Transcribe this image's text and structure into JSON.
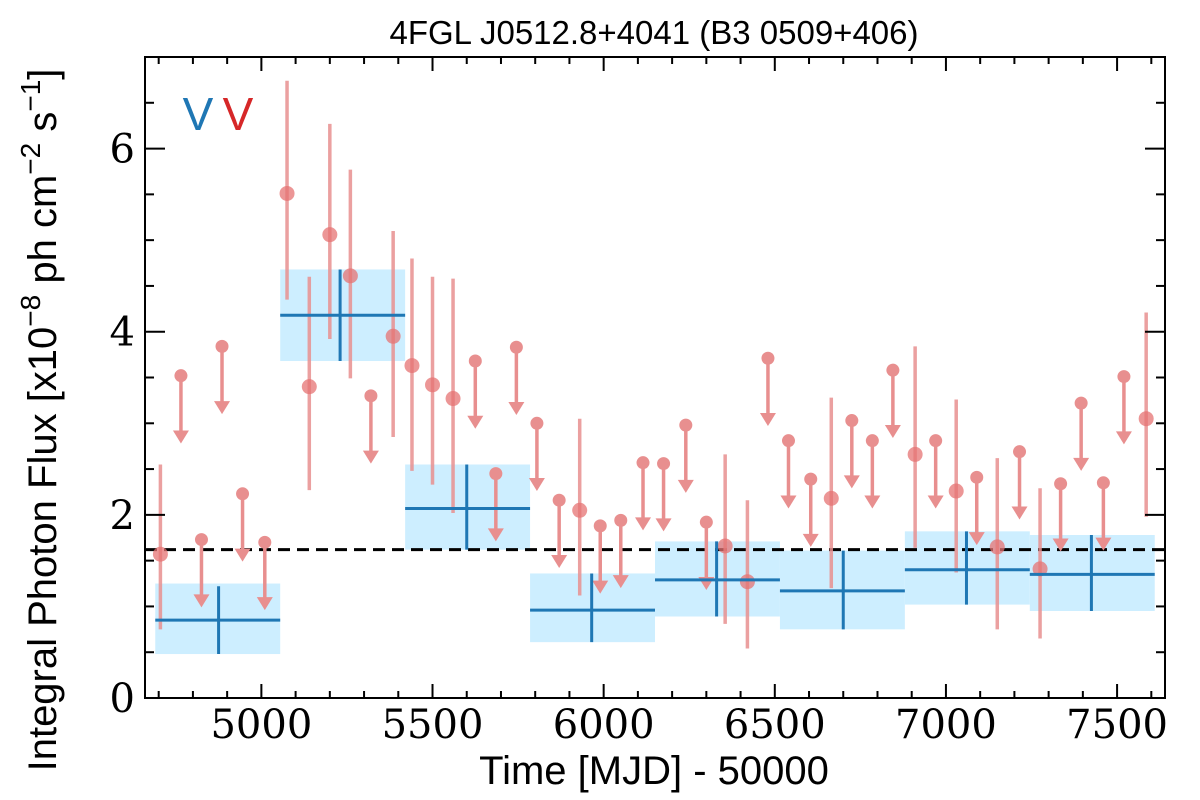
{
  "chart_data": {
    "type": "scatter",
    "title": "4FGL J0512.8+4041 (B3 0509+406)",
    "xlabel": "Time [MJD] - 50000",
    "ylabel": "Integral Photon Flux [x10",
    "ylabel_exp1": "−8",
    "ylabel_mid": " ph cm",
    "ylabel_exp2": "−2",
    "ylabel_end": " s",
    "ylabel_exp3": "−1",
    "ylabel_close": "]",
    "xlim": [
      4660,
      7640
    ],
    "ylim": [
      0,
      7
    ],
    "x_ticks": [
      5000,
      5500,
      6000,
      6500,
      7000,
      7500
    ],
    "y_ticks": [
      0,
      2,
      4,
      6
    ],
    "mean_flux": 1.62,
    "markers": [
      {
        "text": "V",
        "color": "#1f77b4"
      },
      {
        "text": "V",
        "color": "#d62728"
      }
    ],
    "colors": {
      "bin_line": "#1f77b4",
      "bin_fill": "#cdeeff",
      "point": "#e57373",
      "upper_limit": "#e88f8f",
      "mean_line": "#000000"
    },
    "series": [
      {
        "label_role": "long-bins",
        "bins": [
          {
            "x0": 4690,
            "x1": 5055,
            "center": 4875,
            "y": 0.85,
            "ylo": 0.48,
            "yhi": 1.25,
            "err_lo": 0.48,
            "err_hi": 1.22
          },
          {
            "x0": 5055,
            "x1": 5420,
            "center": 5230,
            "y": 4.18,
            "ylo": 3.68,
            "yhi": 4.68,
            "err_lo": 3.68,
            "err_hi": 4.68
          },
          {
            "x0": 5420,
            "x1": 5785,
            "center": 5600,
            "y": 2.07,
            "ylo": 1.62,
            "yhi": 2.55,
            "err_lo": 1.62,
            "err_hi": 2.55
          },
          {
            "x0": 5785,
            "x1": 6150,
            "center": 5965,
            "y": 0.96,
            "ylo": 0.61,
            "yhi": 1.36,
            "err_lo": 0.61,
            "err_hi": 1.36
          },
          {
            "x0": 6150,
            "x1": 6515,
            "center": 6330,
            "y": 1.29,
            "ylo": 0.89,
            "yhi": 1.71,
            "err_lo": 0.89,
            "err_hi": 1.71
          },
          {
            "x0": 6515,
            "x1": 6880,
            "center": 6700,
            "y": 1.17,
            "ylo": 0.75,
            "yhi": 1.61,
            "err_lo": 0.75,
            "err_hi": 1.61
          },
          {
            "x0": 6880,
            "x1": 7245,
            "center": 7060,
            "y": 1.4,
            "ylo": 1.02,
            "yhi": 1.82,
            "err_lo": 1.02,
            "err_hi": 1.82
          },
          {
            "x0": 7245,
            "x1": 7610,
            "center": 7425,
            "y": 1.35,
            "ylo": 0.95,
            "yhi": 1.78,
            "err_lo": 0.95,
            "err_hi": 1.78
          }
        ]
      },
      {
        "label_role": "short-bins",
        "points": [
          {
            "x": 4705,
            "y": 1.57,
            "ylo": 0.75,
            "yhi": 2.55
          },
          {
            "x": 4765,
            "ul": 3.52
          },
          {
            "x": 4825,
            "ul": 1.73
          },
          {
            "x": 4885,
            "ul": 3.84
          },
          {
            "x": 4945,
            "ul": 2.23
          },
          {
            "x": 5010,
            "ul": 1.7
          },
          {
            "x": 5075,
            "y": 5.51,
            "ylo": 4.35,
            "yhi": 6.74
          },
          {
            "x": 5140,
            "y": 3.4,
            "ylo": 2.27,
            "yhi": 4.6
          },
          {
            "x": 5200,
            "y": 5.06,
            "ylo": 3.92,
            "yhi": 6.27
          },
          {
            "x": 5260,
            "y": 4.61,
            "ylo": 3.49,
            "yhi": 5.77
          },
          {
            "x": 5320,
            "ul": 3.3
          },
          {
            "x": 5385,
            "y": 3.95,
            "ylo": 2.85,
            "yhi": 5.1
          },
          {
            "x": 5440,
            "y": 3.63,
            "ylo": 2.48,
            "yhi": 4.8
          },
          {
            "x": 5500,
            "y": 3.42,
            "ylo": 2.33,
            "yhi": 4.6
          },
          {
            "x": 5560,
            "y": 3.27,
            "ylo": 2.02,
            "yhi": 4.58
          },
          {
            "x": 5625,
            "ul": 3.68
          },
          {
            "x": 5685,
            "ul": 2.45
          },
          {
            "x": 5745,
            "ul": 3.83
          },
          {
            "x": 5805,
            "ul": 3.0
          },
          {
            "x": 5870,
            "ul": 2.16
          },
          {
            "x": 5930,
            "y": 2.05,
            "ylo": 1.12,
            "yhi": 3.05
          },
          {
            "x": 5990,
            "ul": 1.88
          },
          {
            "x": 6050,
            "ul": 1.94
          },
          {
            "x": 6115,
            "ul": 2.57
          },
          {
            "x": 6175,
            "ul": 2.56
          },
          {
            "x": 6240,
            "ul": 2.98
          },
          {
            "x": 6300,
            "ul": 1.92
          },
          {
            "x": 6355,
            "y": 1.66,
            "ylo": 0.81,
            "yhi": 2.66
          },
          {
            "x": 6420,
            "y": 1.27,
            "ylo": 0.54,
            "yhi": 2.16
          },
          {
            "x": 6480,
            "ul": 3.71
          },
          {
            "x": 6540,
            "ul": 2.81
          },
          {
            "x": 6605,
            "ul": 2.39
          },
          {
            "x": 6665,
            "y": 2.18,
            "ylo": 1.2,
            "yhi": 3.28
          },
          {
            "x": 6725,
            "ul": 3.03
          },
          {
            "x": 6785,
            "ul": 2.81
          },
          {
            "x": 6845,
            "ul": 3.58
          },
          {
            "x": 6910,
            "y": 2.66,
            "ylo": 1.64,
            "yhi": 3.84
          },
          {
            "x": 6970,
            "ul": 2.81
          },
          {
            "x": 7030,
            "y": 2.26,
            "ylo": 1.37,
            "yhi": 3.26
          },
          {
            "x": 7090,
            "ul": 2.41
          },
          {
            "x": 7150,
            "y": 1.65,
            "ylo": 0.75,
            "yhi": 2.62
          },
          {
            "x": 7215,
            "ul": 2.69
          },
          {
            "x": 7275,
            "y": 1.41,
            "ylo": 0.65,
            "yhi": 2.29
          },
          {
            "x": 7335,
            "ul": 2.34
          },
          {
            "x": 7395,
            "ul": 3.22
          },
          {
            "x": 7460,
            "ul": 2.35
          },
          {
            "x": 7520,
            "ul": 3.51
          },
          {
            "x": 7585,
            "y": 3.05,
            "ylo": 1.98,
            "yhi": 4.21
          }
        ]
      }
    ]
  }
}
